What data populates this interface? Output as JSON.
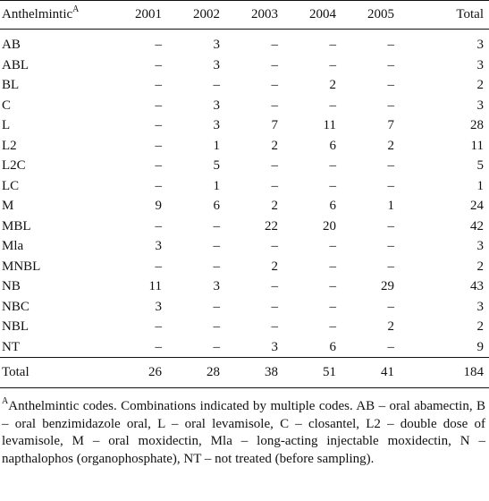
{
  "table": {
    "header_label": "Anthelmintic",
    "header_label_sup": "A",
    "years": [
      "2001",
      "2002",
      "2003",
      "2004",
      "2005"
    ],
    "total_header": "Total",
    "rows": [
      {
        "code": "AB",
        "values": [
          "–",
          "3",
          "–",
          "–",
          "–"
        ],
        "total": "3"
      },
      {
        "code": "ABL",
        "values": [
          "–",
          "3",
          "–",
          "–",
          "–"
        ],
        "total": "3"
      },
      {
        "code": "BL",
        "values": [
          "–",
          "–",
          "–",
          "2",
          "–"
        ],
        "total": "2"
      },
      {
        "code": "C",
        "values": [
          "–",
          "3",
          "–",
          "–",
          "–"
        ],
        "total": "3"
      },
      {
        "code": "L",
        "values": [
          "–",
          "3",
          "7",
          "11",
          "7"
        ],
        "total": "28"
      },
      {
        "code": "L2",
        "values": [
          "–",
          "1",
          "2",
          "6",
          "2"
        ],
        "total": "11"
      },
      {
        "code": "L2C",
        "values": [
          "–",
          "5",
          "–",
          "–",
          "–"
        ],
        "total": "5"
      },
      {
        "code": "LC",
        "values": [
          "–",
          "1",
          "–",
          "–",
          "–"
        ],
        "total": "1"
      },
      {
        "code": "M",
        "values": [
          "9",
          "6",
          "2",
          "6",
          "1"
        ],
        "total": "24"
      },
      {
        "code": "MBL",
        "values": [
          "–",
          "–",
          "22",
          "20",
          "–"
        ],
        "total": "42"
      },
      {
        "code": "Mla",
        "values": [
          "3",
          "–",
          "–",
          "–",
          "–"
        ],
        "total": "3"
      },
      {
        "code": "MNBL",
        "values": [
          "–",
          "–",
          "2",
          "–",
          "–"
        ],
        "total": "2"
      },
      {
        "code": "NB",
        "values": [
          "11",
          "3",
          "–",
          "–",
          "29"
        ],
        "total": "43"
      },
      {
        "code": "NBC",
        "values": [
          "3",
          "–",
          "–",
          "–",
          "–"
        ],
        "total": "3"
      },
      {
        "code": "NBL",
        "values": [
          "–",
          "–",
          "–",
          "–",
          "2"
        ],
        "total": "2"
      },
      {
        "code": "NT",
        "values": [
          "–",
          "–",
          "3",
          "6",
          "–"
        ],
        "total": "9"
      }
    ],
    "total_row": {
      "label": "Total",
      "values": [
        "26",
        "28",
        "38",
        "51",
        "41"
      ],
      "total": "184"
    }
  },
  "footnote": {
    "marker": "A",
    "text": "Anthelmintic codes. Combinations indicated by multiple codes. AB – oral abamectin, B – oral benzimidazole oral, L – oral levamisole, C – closantel, L2 – double dose of levamisole, M – oral moxidectin, Mla – long-acting injectable moxidectin, N – napthalophos (organophosphate), NT – not treated (before sampling)."
  }
}
